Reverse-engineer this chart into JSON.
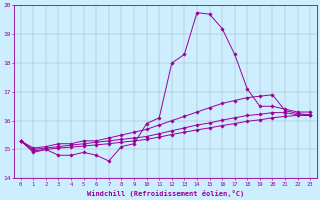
{
  "xlabel": "Windchill (Refroidissement éolien,°C)",
  "bg_color": "#cceeff",
  "line_color": "#990099",
  "grid_color": "#aaaaaa",
  "xlim": [
    -0.5,
    23.5
  ],
  "ylim": [
    14,
    20
  ],
  "xticks": [
    0,
    1,
    2,
    3,
    4,
    5,
    6,
    7,
    8,
    9,
    10,
    11,
    12,
    13,
    14,
    15,
    16,
    17,
    18,
    19,
    20,
    21,
    22,
    23
  ],
  "yticks": [
    14,
    15,
    16,
    17,
    18,
    19,
    20
  ],
  "series": [
    {
      "x": [
        0,
        1,
        2,
        3,
        4,
        5,
        6,
        7,
        8,
        9,
        10,
        11,
        12,
        13,
        14,
        15,
        16,
        17,
        18,
        19,
        20,
        21,
        22,
        23
      ],
      "y": [
        15.3,
        14.9,
        15.0,
        14.8,
        14.8,
        14.9,
        14.8,
        14.6,
        15.1,
        15.2,
        15.9,
        16.1,
        18.0,
        18.3,
        19.75,
        19.7,
        19.2,
        18.3,
        17.1,
        16.5,
        16.5,
        16.4,
        16.3,
        16.3
      ]
    },
    {
      "x": [
        0,
        1,
        2,
        3,
        4,
        5,
        6,
        7,
        8,
        9,
        10,
        11,
        12,
        13,
        14,
        15,
        16,
        17,
        18,
        19,
        20,
        21,
        22,
        23
      ],
      "y": [
        15.3,
        15.05,
        15.1,
        15.2,
        15.2,
        15.3,
        15.3,
        15.4,
        15.5,
        15.6,
        15.7,
        15.85,
        16.0,
        16.15,
        16.3,
        16.45,
        16.6,
        16.7,
        16.8,
        16.85,
        16.9,
        16.35,
        16.25,
        16.2
      ]
    },
    {
      "x": [
        0,
        1,
        2,
        3,
        4,
        5,
        6,
        7,
        8,
        9,
        10,
        11,
        12,
        13,
        14,
        15,
        16,
        17,
        18,
        19,
        20,
        21,
        22,
        23
      ],
      "y": [
        15.3,
        15.0,
        15.05,
        15.1,
        15.15,
        15.2,
        15.25,
        15.3,
        15.35,
        15.4,
        15.45,
        15.55,
        15.65,
        15.75,
        15.85,
        15.92,
        16.02,
        16.1,
        16.18,
        16.22,
        16.28,
        16.28,
        16.2,
        16.2
      ]
    },
    {
      "x": [
        0,
        1,
        2,
        3,
        4,
        5,
        6,
        7,
        8,
        9,
        10,
        11,
        12,
        13,
        14,
        15,
        16,
        17,
        18,
        19,
        20,
        21,
        22,
        23
      ],
      "y": [
        15.3,
        14.95,
        15.0,
        15.05,
        15.08,
        15.12,
        15.16,
        15.2,
        15.25,
        15.3,
        15.35,
        15.43,
        15.52,
        15.6,
        15.68,
        15.75,
        15.83,
        15.9,
        15.98,
        16.03,
        16.1,
        16.15,
        16.18,
        16.18
      ]
    }
  ]
}
